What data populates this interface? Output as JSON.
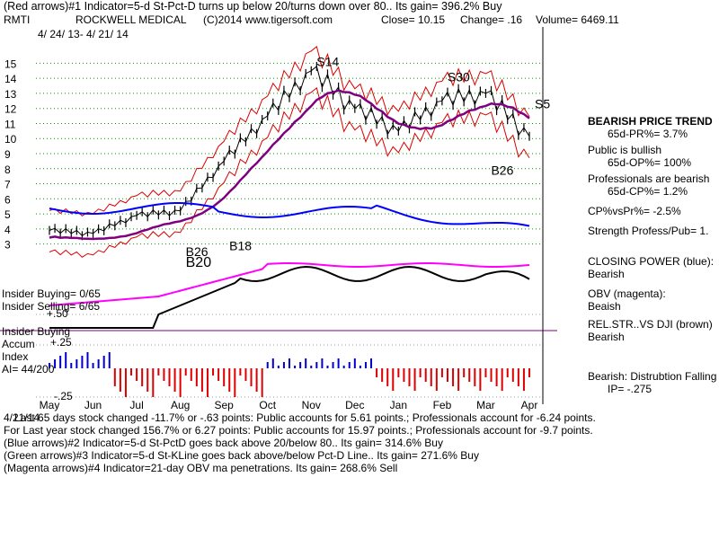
{
  "header": {
    "line1": "(Red arrows)#1 Indicator=5-d St-Pct-D turns up below 20/turns down over 80.. Its gain= 396.2% Buy",
    "ticker": "RMTI",
    "company": "ROCKWELL MEDICAL",
    "copyright": "(C)2014 www.tigersoft.com",
    "close": "Close=  10.15",
    "change": "Change= .16",
    "volume": "Volume= 6469.11",
    "date_range": "4/ 24/ 13- 4/ 21/ 14"
  },
  "chart_data": {
    "type": "line",
    "title": "ROCKWELL MEDICAL",
    "y_ticks": [
      "15",
      "14",
      "13",
      "12",
      "11",
      "10",
      "9",
      "8",
      "7",
      "6",
      "5",
      "4",
      "3"
    ],
    "ylim": [
      2.5,
      15.5
    ],
    "x_ticks": [
      "May",
      "Jun",
      "Jul",
      "Aug",
      "Sep",
      "Oct",
      "Nov",
      "Dec",
      "Jan",
      "Feb",
      "Mar",
      "Apr"
    ],
    "grid": true,
    "price_series": {
      "x": [
        "May",
        "Jun",
        "Jul",
        "Aug",
        "Sep",
        "Oct",
        "Nov",
        "Dec",
        "Jan",
        "Feb",
        "Mar",
        "Apr"
      ],
      "values": [
        3.9,
        3.7,
        4.9,
        5.2,
        8.5,
        11.5,
        14.5,
        12.0,
        10.5,
        12.5,
        13.0,
        10.15
      ]
    },
    "signal_labels": [
      {
        "text": "S14",
        "x": "Nov",
        "y": 14.8
      },
      {
        "text": "S30",
        "x": "Feb",
        "y": 13.8
      },
      {
        "text": "S5",
        "x": "Apr",
        "y": 12.0
      },
      {
        "text": "B26",
        "x": "Mar",
        "y": 7.6
      },
      {
        "text": "B26",
        "x": "Aug",
        "y": 2.2
      },
      {
        "text": "B18",
        "x": "Sep",
        "y": 2.6
      },
      {
        "text": "B20",
        "x": "Aug",
        "y": 1.5
      }
    ],
    "lower_panel": {
      "y_ticks": [
        "+.50",
        "+.25",
        "-.25"
      ],
      "series": [
        "CLOSING POWER (blue)",
        "OBV (magenta)",
        "REL.STR.vs DJI (brown)",
        "Accum Index"
      ]
    },
    "colors": {
      "price": "#000000",
      "bands": "#dd0000",
      "ma": "#800080",
      "closing_power": "#0000ff",
      "obv": "#ff00ff",
      "accum_pos": "#0000cc",
      "accum_neg": "#dd0000",
      "grid": "#009900"
    }
  },
  "left_panel": {
    "insider_buying": "Insider Buying= 0/65",
    "insider_selling": "Insider Selling= 6/65",
    "insider_buying2": "Insider Buying",
    "accum": "Accum",
    "index": "Index",
    "ai": "AI= 44/200",
    "tick_plus50": "+.50",
    "tick_plus25": "+.25",
    "tick_minus25": "-.25"
  },
  "right_panel": {
    "trend_title": "BEARISH PRICE TREND",
    "trend_pr": "65d-PR%= 3.7%",
    "public_title": "Public is bullish",
    "public_op": "65d-OP%= 100%",
    "prof_title": "Professionals are bearish",
    "prof_cp": "65d-CP%= 1.2%",
    "cp_vs_pr": "CP%vsPr%= -2.5%",
    "strength": "Strength Profess/Pub= 1.",
    "closing_power": "CLOSING POWER (blue):",
    "closing_power_val": "Bearish",
    "obv": "OBV (magenta):",
    "obv_val": "Beaish",
    "relstr": "REL.STR..VS DJI (brown)",
    "relstr_val": "Bearish",
    "dist": "Bearish:  Distrubtion Falling",
    "ip": "IP= -.275"
  },
  "footer": {
    "line1": "Last 65 days stock changed  -11.7% or -.63 points:  Public accounts for  5.61 points.;  Professionals account for -6.24 points.",
    "overlap": "4/21/14",
    "line2": "For Last year stock changed  156.7% or  6.27 points:  Public accounts for  15.97 points.;  Professionals account for -9.7 points.",
    "line3": "(Blue arrows)#2 Indicator=5-d St-PctD goes back above 20/below 80.. Its gain= 314.6% Buy",
    "line4": "(Green arrows)#3 Indicator=5-d St-KLine goes back above/below Pct-D Line.. Its gain= 271.6% Buy",
    "line5": "(Magenta arrows)#4 Indicator=21-day OBV ma penetrations. Its gain= 268.6% Sell"
  }
}
